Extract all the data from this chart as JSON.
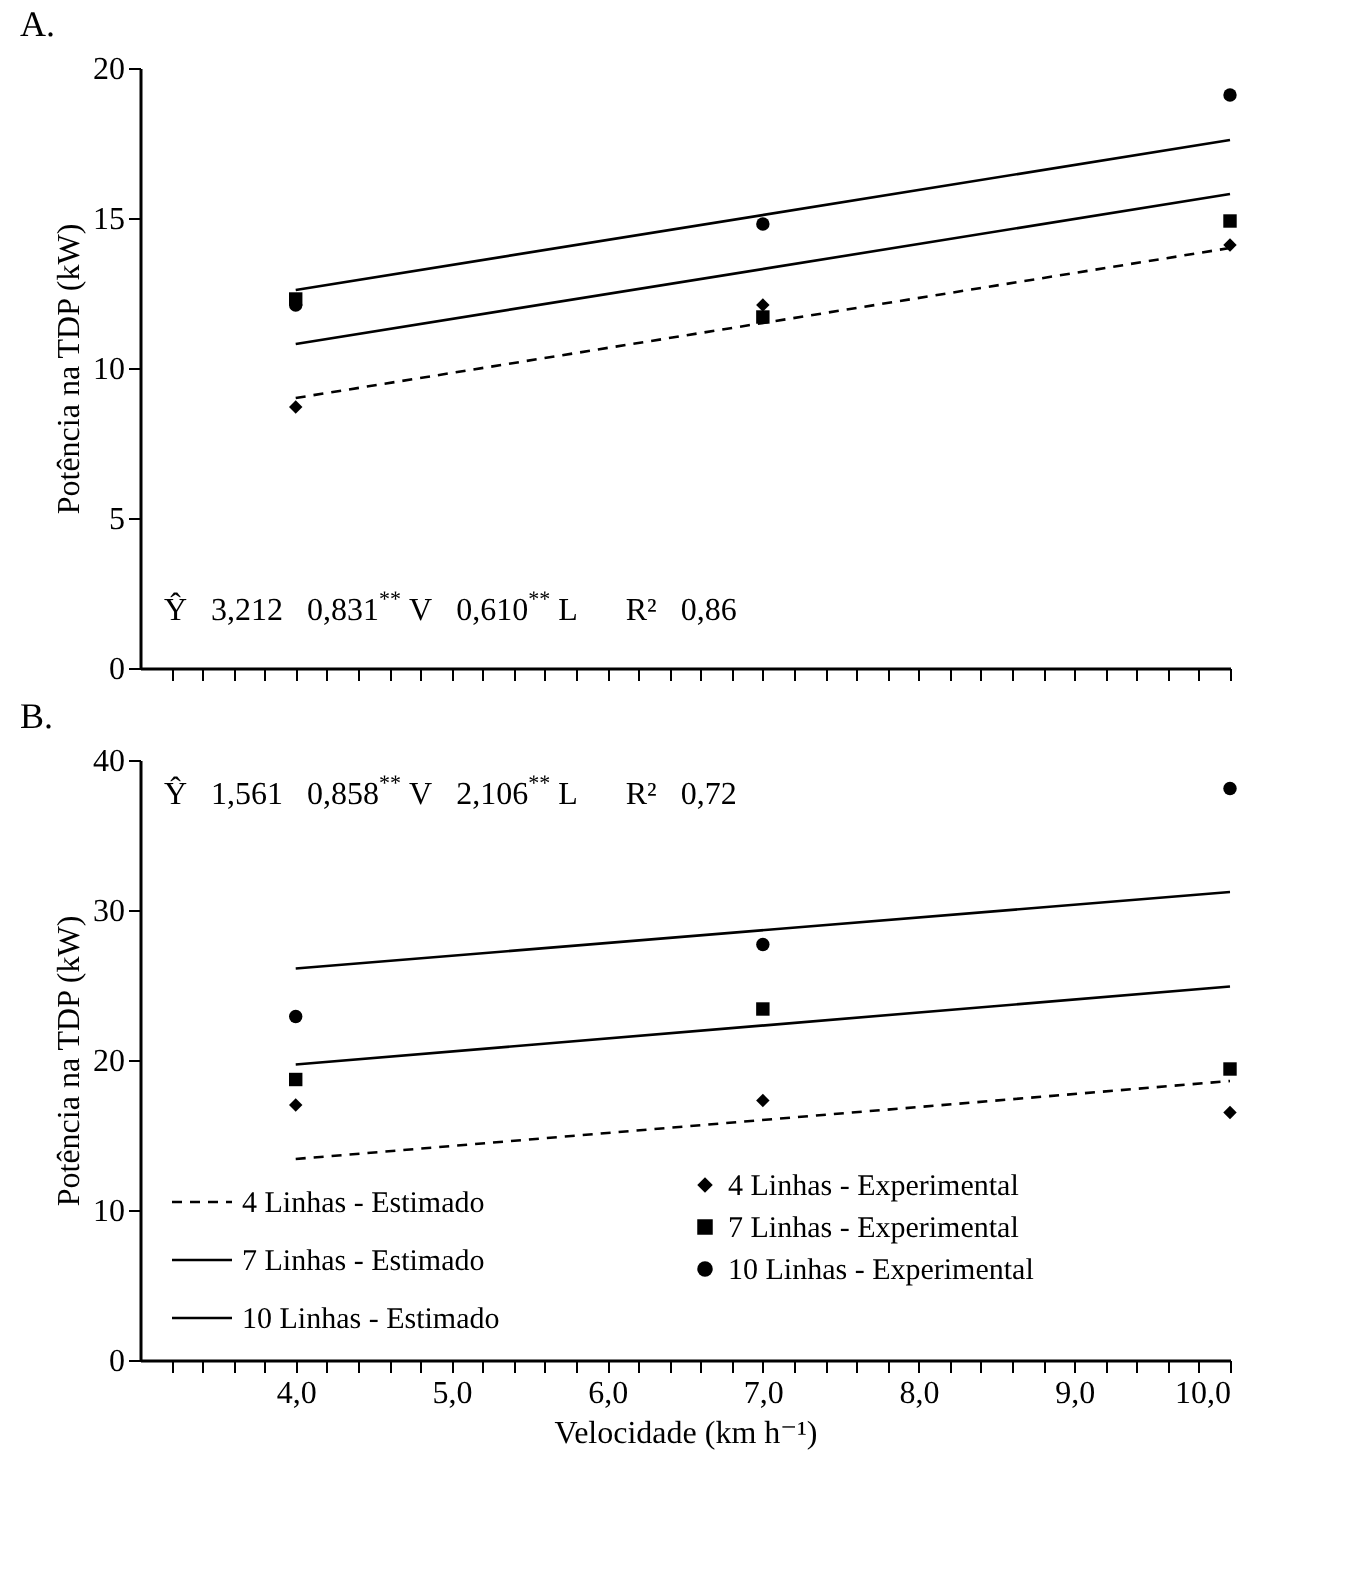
{
  "chart_data": [
    {
      "type": "scatter",
      "title": "A.",
      "ylabel": "Potência na TDP (kW)",
      "xlim": [
        3,
        10
      ],
      "ylim": [
        0,
        20
      ],
      "yticks": [
        0,
        5,
        10,
        15,
        20
      ],
      "tick_labels": "y",
      "xticks": [
        {
          "value": 3.2,
          "label": null
        },
        {
          "value": 3.4,
          "label": null
        },
        {
          "value": 3.6,
          "label": null
        },
        {
          "value": 3.8,
          "label": null
        },
        {
          "value": 4,
          "label": null
        },
        {
          "value": 4.2,
          "label": null
        },
        {
          "value": 4.4,
          "label": null
        },
        {
          "value": 4.6,
          "label": null
        },
        {
          "value": 4.8,
          "label": null
        },
        {
          "value": 5,
          "label": null
        },
        {
          "value": 5.2,
          "label": null
        },
        {
          "value": 5.4,
          "label": null
        },
        {
          "value": 5.6,
          "label": null
        },
        {
          "value": 5.8,
          "label": null
        },
        {
          "value": 6,
          "label": null
        },
        {
          "value": 6.2,
          "label": null
        },
        {
          "value": 6.4,
          "label": null
        },
        {
          "value": 6.6,
          "label": null
        },
        {
          "value": 6.8,
          "label": null
        },
        {
          "value": 7,
          "label": null
        },
        {
          "value": 7.2,
          "label": null
        },
        {
          "value": 7.4,
          "label": null
        },
        {
          "value": 7.6,
          "label": null
        },
        {
          "value": 7.8,
          "label": null
        },
        {
          "value": 8,
          "label": null
        },
        {
          "value": 8.2,
          "label": null
        },
        {
          "value": 8.4,
          "label": null
        },
        {
          "value": 8.6,
          "label": null
        },
        {
          "value": 8.8,
          "label": null
        },
        {
          "value": 9,
          "label": null
        },
        {
          "value": 9.2,
          "label": null
        },
        {
          "value": 9.4,
          "label": null
        },
        {
          "value": 9.6,
          "label": null
        },
        {
          "value": 9.8,
          "label": null
        },
        {
          "value": 10,
          "label": null
        }
      ],
      "annotations": [
        "Ŷ   3,212   0,831$^{**}$ V   0,610$^{**}$ L      R²   0,86"
      ],
      "series": [
        {
          "type": "line",
          "line_style": "dashed",
          "color": "#000000",
          "x": [
            4,
            10
          ],
          "values": [
            9.0,
            14.0
          ]
        },
        {
          "type": "line",
          "line_style": "solid",
          "color": "#000000",
          "x": [
            4,
            10
          ],
          "values": [
            10.8,
            15.8
          ]
        },
        {
          "type": "line",
          "line_style": "solid",
          "color": "#000000",
          "x": [
            4,
            10
          ],
          "values": [
            12.6,
            17.6
          ]
        },
        {
          "marker": "diamond",
          "color": "#000000",
          "x": [
            4,
            7,
            10
          ],
          "values": [
            8.7,
            12.1,
            14.1
          ]
        },
        {
          "marker": "square",
          "color": "#000000",
          "x": [
            4,
            7,
            10
          ],
          "values": [
            12.3,
            11.7,
            14.9
          ]
        },
        {
          "marker": "circle",
          "color": "#000000",
          "x": [
            4,
            7,
            10
          ],
          "values": [
            12.1,
            14.8,
            19.1
          ]
        }
      ]
    },
    {
      "type": "scatter",
      "title": "B.",
      "xlabel": "Velocidade (km h⁻¹)",
      "ylabel": "Potência na TDP (kW)",
      "xlim": [
        3,
        10
      ],
      "ylim": [
        0,
        40
      ],
      "yticks": [
        0,
        10,
        20,
        30,
        40
      ],
      "legend": "bottom left",
      "xticks": [
        {
          "value": 3.2,
          "label": null
        },
        {
          "value": 3.4,
          "label": null
        },
        {
          "value": 3.6,
          "label": null
        },
        {
          "value": 3.8,
          "label": null
        },
        {
          "value": 4,
          "label": "4,0"
        },
        {
          "value": 4.2,
          "label": null
        },
        {
          "value": 4.4,
          "label": null
        },
        {
          "value": 4.6,
          "label": null
        },
        {
          "value": 4.8,
          "label": null
        },
        {
          "value": 5,
          "label": "5,0"
        },
        {
          "value": 5.2,
          "label": null
        },
        {
          "value": 5.4,
          "label": null
        },
        {
          "value": 5.6,
          "label": null
        },
        {
          "value": 5.8,
          "label": null
        },
        {
          "value": 6,
          "label": "6,0"
        },
        {
          "value": 6.2,
          "label": null
        },
        {
          "value": 6.4,
          "label": null
        },
        {
          "value": 6.6,
          "label": null
        },
        {
          "value": 6.8,
          "label": null
        },
        {
          "value": 7,
          "label": "7,0"
        },
        {
          "value": 7.2,
          "label": null
        },
        {
          "value": 7.4,
          "label": null
        },
        {
          "value": 7.6,
          "label": null
        },
        {
          "value": 7.8,
          "label": null
        },
        {
          "value": 8,
          "label": "8,0"
        },
        {
          "value": 8.2,
          "label": null
        },
        {
          "value": 8.4,
          "label": null
        },
        {
          "value": 8.6,
          "label": null
        },
        {
          "value": 8.8,
          "label": null
        },
        {
          "value": 9,
          "label": "9,0"
        },
        {
          "value": 9.2,
          "label": null
        },
        {
          "value": 9.4,
          "label": null
        },
        {
          "value": 9.6,
          "label": null
        },
        {
          "value": 9.8,
          "label": null
        },
        {
          "value": 10,
          "label": "10,0"
        }
      ],
      "annotations": [
        "Ŷ   1,561   0,858$^{**}$ V   2,106$^{**}$ L      R²   0,72"
      ],
      "series": [
        {
          "type": "line",
          "name": "4 Linhas - Estimado",
          "line_style": "dashed",
          "color": "#000000",
          "x": [
            4,
            10
          ],
          "values": [
            13.4,
            18.6
          ]
        },
        {
          "type": "line",
          "name": "7 Linhas - Estimado",
          "line_style": "solid",
          "color": "#000000",
          "x": [
            4,
            10
          ],
          "values": [
            19.7,
            24.9
          ]
        },
        {
          "type": "line",
          "name": "10 Linhas - Estimado",
          "line_style": "solid",
          "color": "#000000",
          "x": [
            4,
            10
          ],
          "values": [
            26.1,
            31.2
          ]
        },
        {
          "name": "4 Linhas - Experimental",
          "marker": "diamond",
          "color": "#000000",
          "x": [
            4,
            7,
            10
          ],
          "values": [
            17.0,
            17.3,
            16.5
          ]
        },
        {
          "name": "7 Linhas - Experimental",
          "marker": "square",
          "color": "#000000",
          "x": [
            4,
            7,
            10
          ],
          "values": [
            18.7,
            23.4,
            19.4
          ]
        },
        {
          "name": "10 Linhas - Experimental",
          "marker": "circle",
          "color": "#000000",
          "x": [
            4,
            7,
            10
          ],
          "values": [
            22.9,
            27.7,
            38.1
          ]
        }
      ]
    }
  ]
}
